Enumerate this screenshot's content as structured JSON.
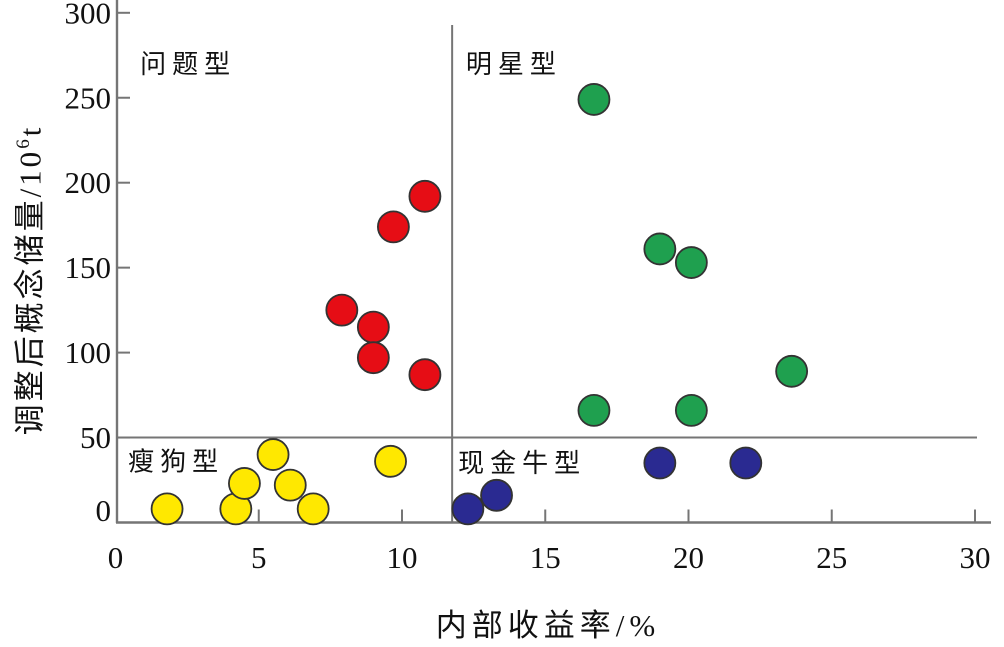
{
  "chart_data": {
    "type": "scatter",
    "title": "",
    "xlabel": "内部收益率/%",
    "ylabel": "调整后概念储量/10⁶t",
    "ylabel_base": "调整后概念储量/10",
    "ylabel_sup": "6",
    "ylabel_unit": "t",
    "xlim": [
      0,
      30.5
    ],
    "ylim": [
      0,
      305
    ],
    "xticks": [
      0,
      5,
      10,
      15,
      20,
      25,
      30
    ],
    "yticks": [
      0,
      50,
      100,
      150,
      200,
      250,
      300
    ],
    "grid": "off",
    "legend": "none",
    "dividers": {
      "x": 11.75,
      "y": 50
    },
    "quadrant_labels": [
      {
        "id": "problem",
        "text": "问题型",
        "x": 0.86,
        "y": 270
      },
      {
        "id": "star",
        "text": "明星型",
        "x": 12.23,
        "y": 270
      },
      {
        "id": "dog",
        "text": "瘦狗型",
        "x": 0.44,
        "y": 36
      },
      {
        "id": "cash-cow",
        "text": "现金牛型",
        "x": 11.96,
        "y": 35
      }
    ],
    "series": [
      {
        "name": "问题型",
        "color": "#e60d15",
        "points": [
          [
            7.9,
            125
          ],
          [
            9.0,
            115
          ],
          [
            9.0,
            97
          ],
          [
            9.7,
            174
          ],
          [
            10.8,
            192
          ],
          [
            10.8,
            87
          ]
        ]
      },
      {
        "name": "明星型",
        "color": "#1fa04f",
        "points": [
          [
            16.7,
            249
          ],
          [
            19.0,
            161
          ],
          [
            20.1,
            153
          ],
          [
            16.7,
            66
          ],
          [
            20.1,
            66
          ],
          [
            23.6,
            89
          ]
        ]
      },
      {
        "name": "瘦狗型",
        "color": "#ffe800",
        "points": [
          [
            1.8,
            8
          ],
          [
            4.2,
            8
          ],
          [
            4.5,
            23
          ],
          [
            5.5,
            40
          ],
          [
            6.1,
            22
          ],
          [
            6.9,
            8
          ],
          [
            9.6,
            36
          ]
        ]
      },
      {
        "name": "现金牛型",
        "color": "#2a2a91",
        "points": [
          [
            12.3,
            8
          ],
          [
            13.3,
            16
          ],
          [
            19.0,
            35
          ],
          [
            22.0,
            35
          ]
        ]
      }
    ],
    "marker": {
      "radius": 15.5,
      "stroke": "#333333"
    },
    "axis_color": "#757575",
    "text_color": "#111111"
  }
}
